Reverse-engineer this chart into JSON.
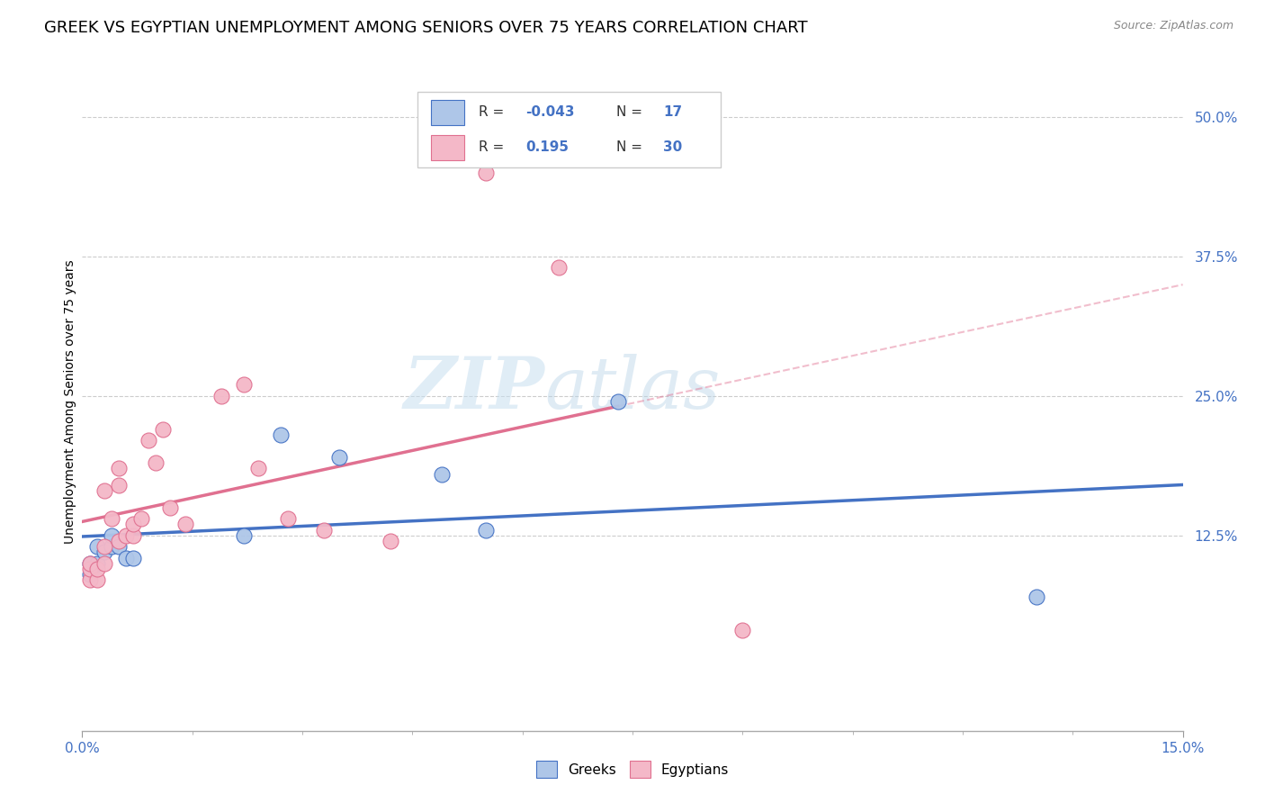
{
  "title": "GREEK VS EGYPTIAN UNEMPLOYMENT AMONG SENIORS OVER 75 YEARS CORRELATION CHART",
  "source": "Source: ZipAtlas.com",
  "ylabel_label": "Unemployment Among Seniors over 75 years",
  "xlim": [
    0.0,
    0.15
  ],
  "ylim": [
    -0.05,
    0.54
  ],
  "yticks": [
    0.125,
    0.25,
    0.375,
    0.5
  ],
  "ytick_labels": [
    "12.5%",
    "25.0%",
    "37.5%",
    "50.0%"
  ],
  "xticks": [
    0.0,
    0.15
  ],
  "xtick_labels": [
    "0.0%",
    "15.0%"
  ],
  "greek_color": "#aec6e8",
  "greek_edge_color": "#4472c4",
  "egyptian_color": "#f4b8c8",
  "egyptian_edge_color": "#e07090",
  "legend_greek_label": "Greeks",
  "legend_egyptian_label": "Egyptians",
  "greek_R": "-0.043",
  "greek_N": "17",
  "egyptian_R": "0.195",
  "egyptian_N": "30",
  "watermark_zip": "ZIP",
  "watermark_atlas": "atlas",
  "background_color": "#ffffff",
  "grid_color": "#cccccc",
  "title_fontsize": 13,
  "axis_label_fontsize": 10,
  "tick_fontsize": 11,
  "legend_fontsize": 11,
  "greek_x": [
    0.001,
    0.001,
    0.002,
    0.002,
    0.003,
    0.004,
    0.004,
    0.005,
    0.006,
    0.007,
    0.022,
    0.027,
    0.035,
    0.049,
    0.055,
    0.073,
    0.13
  ],
  "greek_y": [
    0.09,
    0.1,
    0.1,
    0.115,
    0.11,
    0.115,
    0.125,
    0.115,
    0.105,
    0.105,
    0.125,
    0.215,
    0.195,
    0.18,
    0.13,
    0.245,
    0.07
  ],
  "egyptian_x": [
    0.001,
    0.001,
    0.001,
    0.002,
    0.002,
    0.003,
    0.003,
    0.003,
    0.004,
    0.005,
    0.005,
    0.005,
    0.006,
    0.007,
    0.007,
    0.008,
    0.009,
    0.01,
    0.011,
    0.012,
    0.014,
    0.019,
    0.022,
    0.024,
    0.028,
    0.033,
    0.042,
    0.055,
    0.065,
    0.09
  ],
  "egyptian_y": [
    0.085,
    0.095,
    0.1,
    0.085,
    0.095,
    0.1,
    0.115,
    0.165,
    0.14,
    0.17,
    0.185,
    0.12,
    0.125,
    0.125,
    0.135,
    0.14,
    0.21,
    0.19,
    0.22,
    0.15,
    0.135,
    0.25,
    0.26,
    0.185,
    0.14,
    0.13,
    0.12,
    0.45,
    0.365,
    0.04
  ],
  "greek_line_start_x": 0.0,
  "greek_line_end_x": 0.15,
  "egyptian_line_start_x": 0.0,
  "egyptian_line_solid_end_x": 0.073,
  "egyptian_line_dashed_end_x": 0.15
}
